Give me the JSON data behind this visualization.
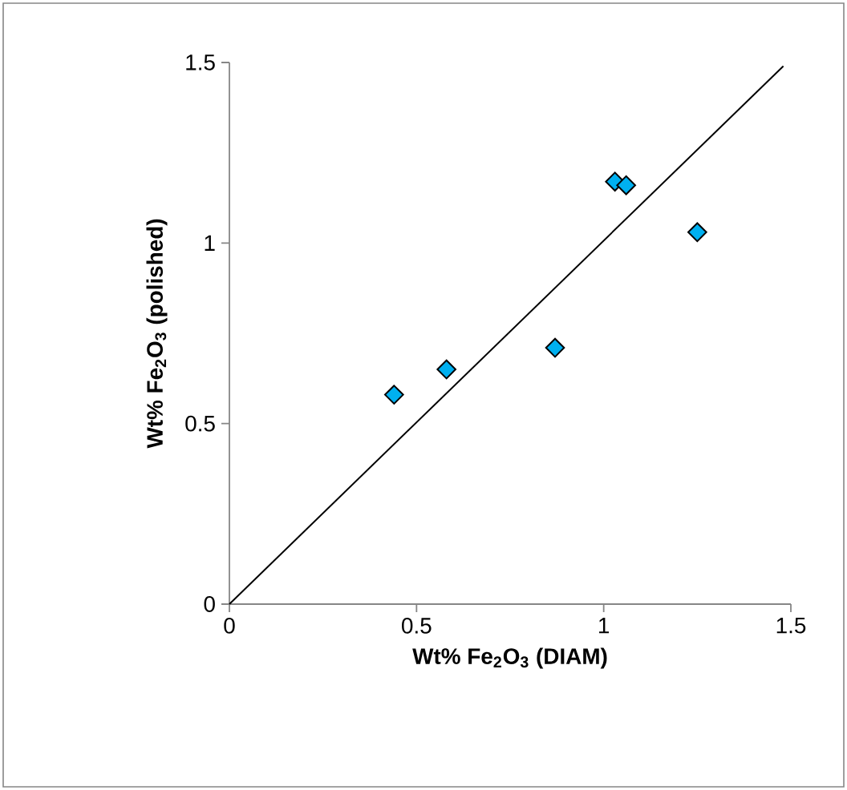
{
  "chart_data": {
    "type": "scatter",
    "xlabel": "Wt% Fe$_{2}$O$_{3}$ (DIAM)",
    "ylabel": "Wt% Fe$_{2}$O$_{3}$ (polished)",
    "xlim": [
      0,
      1.5
    ],
    "ylim": [
      0,
      1.5
    ],
    "xticks": [
      0,
      0.5,
      1,
      1.5
    ],
    "yticks": [
      0,
      0.5,
      1,
      1.5
    ],
    "series": [
      {
        "color": "#00b0f0",
        "marker": "diamond",
        "x": [
          0.44,
          0.58,
          0.87,
          1.03,
          1.06,
          1.25
        ],
        "values": [
          0.58,
          0.65,
          0.71,
          1.17,
          1.16,
          1.03
        ]
      },
      {
        "type": "line",
        "color": "#000000",
        "marker": "none",
        "line_style": "solid",
        "x": [
          0,
          1.48
        ],
        "values": [
          0,
          1.49
        ]
      }
    ]
  }
}
